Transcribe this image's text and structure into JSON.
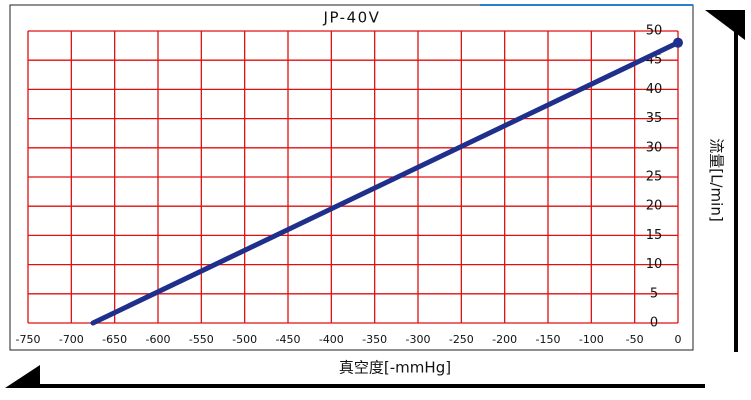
{
  "chart_data": {
    "type": "line",
    "title": "JP-40V",
    "x_label": "真空度[-mmHg]",
    "y_label": "流量[L/min]",
    "x": [
      -675,
      0
    ],
    "values": [
      0,
      48
    ],
    "color": "#1f2f8c",
    "xlim": [
      -750,
      0
    ],
    "ylim": [
      0,
      50
    ],
    "xticks": [
      -750,
      -700,
      -650,
      -600,
      -550,
      -500,
      -450,
      -400,
      -350,
      -300,
      -250,
      -200,
      -150,
      -100,
      -50,
      0
    ],
    "yticks": [
      0,
      5,
      10,
      15,
      20,
      25,
      30,
      35,
      40,
      45,
      50
    ],
    "grid": true,
    "grid_color": "#e01010"
  }
}
